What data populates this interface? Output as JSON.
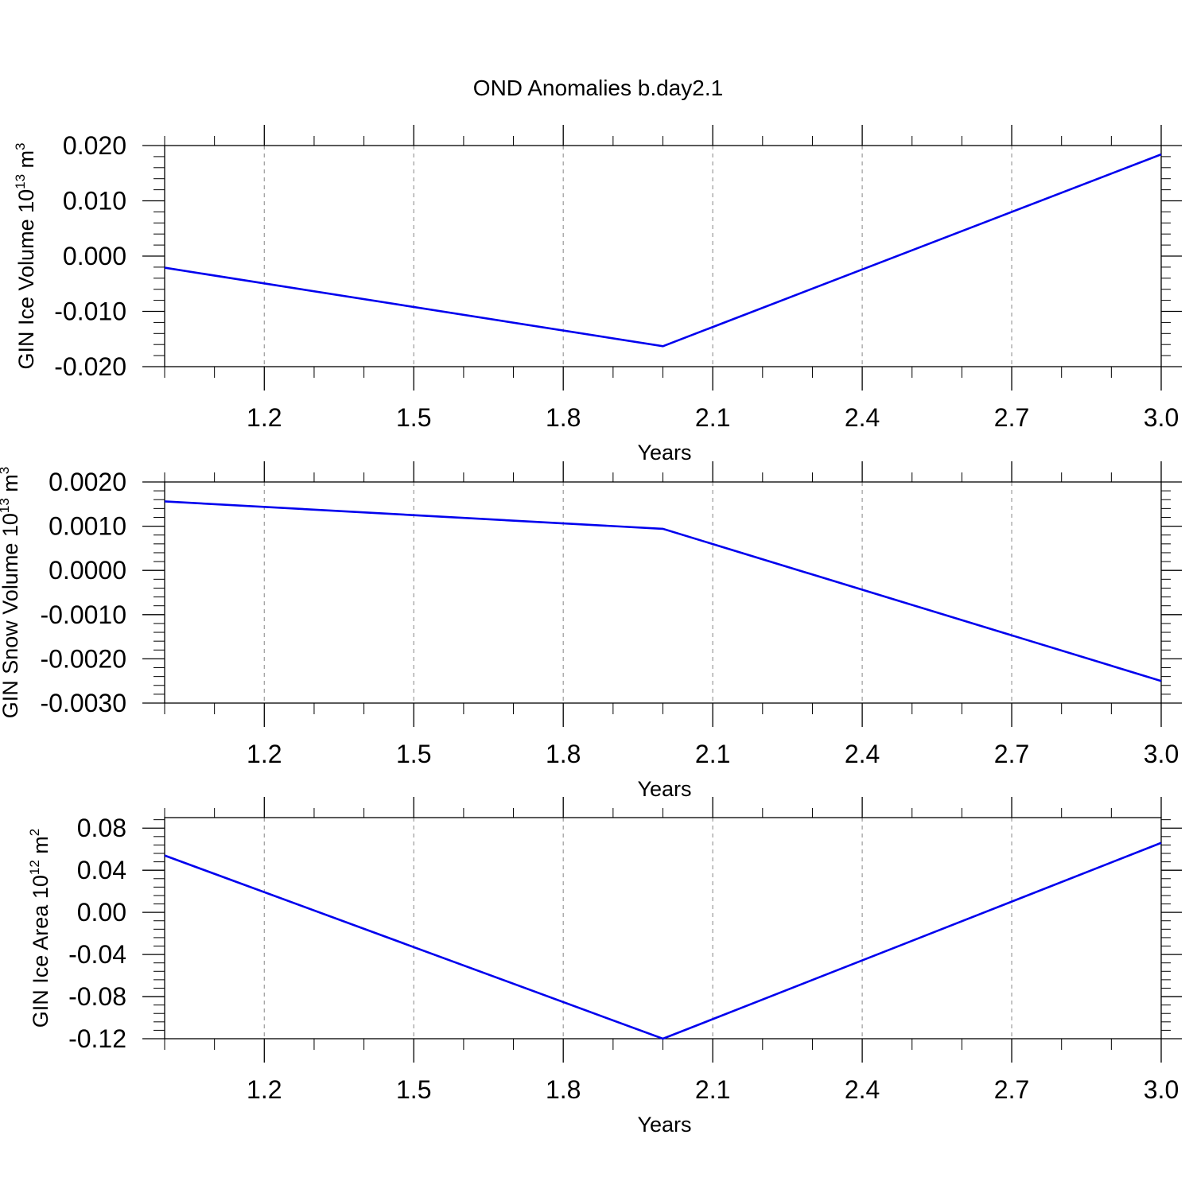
{
  "page_title": "OND Anomalies b.day2.1",
  "chart_data": [
    {
      "type": "line",
      "title": "OND Anomalies b.day2.1",
      "xlabel": "Years",
      "ylabel": {
        "main": "GIN Ice Volume 10",
        "exp": "13",
        "unit": " m",
        "unit_exp": "3"
      },
      "x": [
        1,
        2,
        3
      ],
      "series": [
        {
          "name": "GIN Ice Volume",
          "color": "#0000ee",
          "values": [
            -0.0021,
            -0.0163,
            0.0184
          ]
        }
      ],
      "xlim": [
        1.0,
        3.0
      ],
      "ylim": [
        -0.02,
        0.02
      ],
      "xticks": [
        1.2,
        1.5,
        1.8,
        2.1,
        2.4,
        2.7,
        3.0
      ],
      "xtick_labels": [
        "1.2",
        "1.5",
        "1.8",
        "2.1",
        "2.4",
        "2.7",
        "3.0"
      ],
      "yticks": [
        -0.02,
        -0.01,
        0.0,
        0.01,
        0.02
      ],
      "ytick_labels": [
        "-0.020",
        "-0.010",
        "0.000",
        "0.010",
        "0.020"
      ],
      "grid": "x-dashed"
    },
    {
      "type": "line",
      "title": "",
      "xlabel": "Years",
      "ylabel": {
        "main": "GIN Snow Volume 10",
        "exp": "13",
        "unit": " m",
        "unit_exp": "3"
      },
      "x": [
        1,
        2,
        3
      ],
      "series": [
        {
          "name": "GIN Snow Volume",
          "color": "#0000ee",
          "values": [
            0.00156,
            0.00094,
            -0.0025
          ]
        }
      ],
      "xlim": [
        1.0,
        3.0
      ],
      "ylim": [
        -0.003,
        0.002
      ],
      "xticks": [
        1.2,
        1.5,
        1.8,
        2.1,
        2.4,
        2.7,
        3.0
      ],
      "xtick_labels": [
        "1.2",
        "1.5",
        "1.8",
        "2.1",
        "2.4",
        "2.7",
        "3.0"
      ],
      "yticks": [
        -0.003,
        -0.002,
        -0.001,
        0.0,
        0.001,
        0.002
      ],
      "ytick_labels": [
        "-0.0030",
        "-0.0020",
        "-0.0010",
        "0.0000",
        "0.0010",
        "0.0020"
      ],
      "grid": "x-dashed"
    },
    {
      "type": "line",
      "title": "",
      "xlabel": "Years",
      "ylabel": {
        "main": "GIN Ice Area 10",
        "exp": "12",
        "unit": " m",
        "unit_exp": "2"
      },
      "x": [
        1,
        2,
        3
      ],
      "series": [
        {
          "name": "GIN Ice Area",
          "color": "#0000ee",
          "values": [
            0.054,
            -0.12,
            0.066
          ]
        }
      ],
      "xlim": [
        1.0,
        3.0
      ],
      "ylim": [
        -0.12,
        0.09
      ],
      "xticks": [
        1.2,
        1.5,
        1.8,
        2.1,
        2.4,
        2.7,
        3.0
      ],
      "xtick_labels": [
        "1.2",
        "1.5",
        "1.8",
        "2.1",
        "2.4",
        "2.7",
        "3.0"
      ],
      "yticks": [
        -0.12,
        -0.08,
        -0.04,
        0.0,
        0.04,
        0.08
      ],
      "ytick_labels": [
        "-0.12",
        "-0.08",
        "-0.04",
        "0.00",
        "0.04",
        "0.08"
      ],
      "grid": "x-dashed"
    }
  ]
}
